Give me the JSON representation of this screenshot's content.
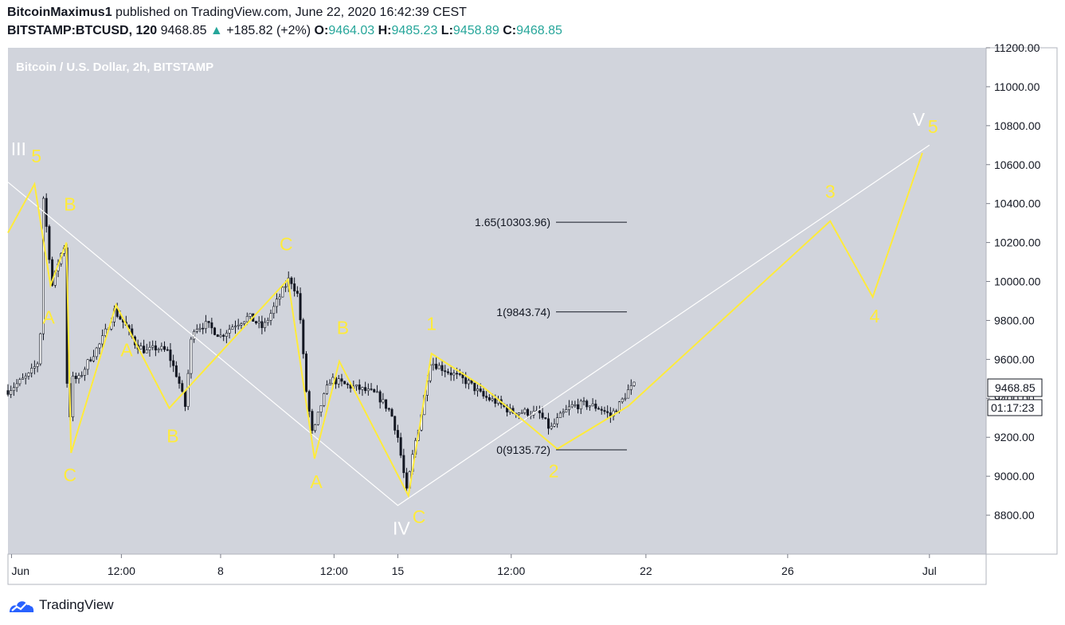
{
  "header": {
    "author": "BitcoinMaximus1",
    "published": "published on TradingView.com, June 22, 2020 16:42:39 CEST",
    "symbol": "BITSTAMP:BTCUSD, 120",
    "last": "9468.85",
    "change_arrow": "▲",
    "change": "+185.82 (+2%)",
    "o_label": "O:",
    "o": "9464.03",
    "h_label": "H:",
    "h": "9485.23",
    "l_label": "L:",
    "l": "9458.89",
    "c_label": "C:",
    "c": "9468.85"
  },
  "chart_data": {
    "type": "line",
    "title": "Bitcoin / U.S. Dollar, 2h, BITSTAMP",
    "ylim": [
      8600,
      11200
    ],
    "y_ticks": [
      "11200.00",
      "11000.00",
      "10800.00",
      "10600.00",
      "10400.00",
      "10200.00",
      "10000.00",
      "9800.00",
      "9600.00",
      "9400.00",
      "9200.00",
      "9000.00",
      "8800.00"
    ],
    "x_ticks": [
      "Jun",
      "12:00",
      "8",
      "12:00",
      "15",
      "12:00",
      "22",
      "26",
      "Jul"
    ],
    "x_range_days": [
      4.0,
      31.6
    ],
    "last_price": "9468.85",
    "countdown": "01:17:23",
    "colors": {
      "background": "#d1d4dc",
      "candles": "#131722",
      "wave": "#ffeb3b",
      "channel": "#ffffff"
    },
    "price_series": [
      [
        4.0,
        9440
      ],
      [
        4.3,
        9480
      ],
      [
        4.6,
        9520
      ],
      [
        4.9,
        9600
      ],
      [
        5.0,
        10430
      ],
      [
        5.1,
        10250
      ],
      [
        5.25,
        9980
      ],
      [
        5.45,
        10120
      ],
      [
        5.6,
        10190
      ],
      [
        5.7,
        9130
      ],
      [
        5.8,
        9500
      ],
      [
        6.0,
        9500
      ],
      [
        6.3,
        9600
      ],
      [
        6.6,
        9680
      ],
      [
        6.8,
        9760
      ],
      [
        7.0,
        9850
      ],
      [
        7.3,
        9780
      ],
      [
        7.6,
        9680
      ],
      [
        7.9,
        9640
      ],
      [
        8.2,
        9660
      ],
      [
        8.5,
        9640
      ],
      [
        8.8,
        9500
      ],
      [
        9.0,
        9360
      ],
      [
        9.2,
        9760
      ],
      [
        9.6,
        9780
      ],
      [
        10.0,
        9720
      ],
      [
        10.4,
        9780
      ],
      [
        10.8,
        9820
      ],
      [
        11.2,
        9760
      ],
      [
        11.6,
        9900
      ],
      [
        11.95,
        10020
      ],
      [
        12.2,
        9920
      ],
      [
        12.4,
        9460
      ],
      [
        12.6,
        9200
      ],
      [
        12.8,
        9350
      ],
      [
        13.1,
        9500
      ],
      [
        13.5,
        9470
      ],
      [
        13.9,
        9450
      ],
      [
        14.4,
        9420
      ],
      [
        14.8,
        9330
      ],
      [
        15.0,
        9200
      ],
      [
        15.25,
        8920
      ],
      [
        15.45,
        9140
      ],
      [
        15.7,
        9350
      ],
      [
        15.9,
        9590
      ],
      [
        16.2,
        9560
      ],
      [
        16.6,
        9520
      ],
      [
        17.0,
        9480
      ],
      [
        17.4,
        9410
      ],
      [
        17.8,
        9380
      ],
      [
        18.2,
        9330
      ],
      [
        18.6,
        9330
      ],
      [
        19.0,
        9320
      ],
      [
        19.3,
        9240
      ],
      [
        19.55,
        9300
      ],
      [
        19.9,
        9360
      ],
      [
        20.3,
        9370
      ],
      [
        20.7,
        9350
      ],
      [
        21.0,
        9310
      ],
      [
        21.3,
        9380
      ],
      [
        21.5,
        9440
      ],
      [
        21.7,
        9470
      ]
    ],
    "series": [
      {
        "points": [
          [
            4.0,
            10250
          ],
          [
            4.75,
            10500
          ],
          [
            5.2,
            9980
          ],
          [
            5.65,
            10200
          ],
          [
            5.78,
            9120
          ],
          [
            7.05,
            9880
          ],
          [
            8.55,
            9350
          ],
          [
            11.9,
            10010
          ],
          [
            12.65,
            9090
          ],
          [
            13.35,
            9590
          ],
          [
            15.3,
            8900
          ],
          [
            15.95,
            9630
          ],
          [
            17.4,
            9460
          ],
          [
            19.5,
            9140
          ],
          [
            21.5,
            9360
          ],
          [
            27.2,
            10310
          ],
          [
            28.4,
            9920
          ],
          [
            29.8,
            10660
          ]
        ]
      },
      {
        "points": [
          [
            4.0,
            10510
          ],
          [
            15.0,
            8850
          ],
          [
            30.0,
            10700
          ]
        ]
      }
    ],
    "fib_levels": [
      {
        "label": "1.65(10303.96)",
        "value": 10303.96
      },
      {
        "label": "1(9843.74)",
        "value": 9843.74
      },
      {
        "label": "0(9135.72)",
        "value": 9135.72
      }
    ],
    "annotations": [
      {
        "text": "III",
        "x": 4.3,
        "y": 10648,
        "color": "#ffffff"
      },
      {
        "text": "5",
        "x": 4.8,
        "y": 10612,
        "color": "#ffeb3b"
      },
      {
        "text": "B",
        "x": 5.75,
        "y": 10365,
        "color": "#ffeb3b"
      },
      {
        "text": "A",
        "x": 5.15,
        "y": 9783,
        "color": "#ffeb3b"
      },
      {
        "text": "C",
        "x": 5.75,
        "y": 8975,
        "color": "#ffeb3b"
      },
      {
        "text": "A",
        "x": 7.35,
        "y": 9615,
        "color": "#ffeb3b"
      },
      {
        "text": "B",
        "x": 8.65,
        "y": 9175,
        "color": "#ffeb3b"
      },
      {
        "text": "C",
        "x": 11.85,
        "y": 10160,
        "color": "#ffeb3b"
      },
      {
        "text": "A",
        "x": 12.7,
        "y": 8940,
        "color": "#ffeb3b"
      },
      {
        "text": "B",
        "x": 13.45,
        "y": 9730,
        "color": "#ffeb3b"
      },
      {
        "text": "C",
        "x": 15.6,
        "y": 8760,
        "color": "#ffeb3b"
      },
      {
        "text": "IV",
        "x": 15.1,
        "y": 8700,
        "color": "#ffffff"
      },
      {
        "text": "1",
        "x": 15.95,
        "y": 9750,
        "color": "#ffeb3b"
      },
      {
        "text": "2",
        "x": 19.4,
        "y": 8995,
        "color": "#ffeb3b"
      },
      {
        "text": "3",
        "x": 27.2,
        "y": 10430,
        "color": "#ffeb3b"
      },
      {
        "text": "4",
        "x": 28.45,
        "y": 9790,
        "color": "#ffeb3b"
      },
      {
        "text": "V",
        "x": 29.7,
        "y": 10800,
        "color": "#ffffff"
      },
      {
        "text": "5",
        "x": 30.1,
        "y": 10762,
        "color": "#ffeb3b"
      }
    ]
  },
  "footer": {
    "brand": "TradingView",
    "logo_icon": "tradingview-cloud-icon"
  }
}
